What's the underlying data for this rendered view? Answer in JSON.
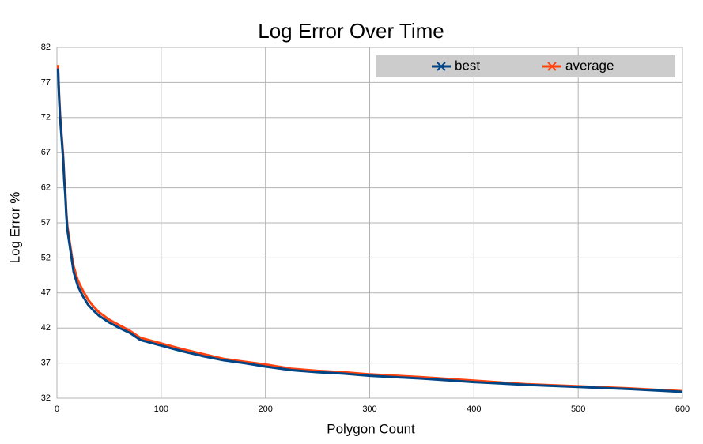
{
  "chart_data": {
    "type": "line",
    "title": "Log Error Over Time",
    "x_label": "Polygon Count",
    "y_label": "Log Error %",
    "x": [
      1,
      2,
      3,
      4,
      5,
      6,
      7,
      8,
      9,
      10,
      12,
      14,
      16,
      18,
      20,
      25,
      30,
      35,
      40,
      50,
      60,
      70,
      80,
      100,
      120,
      140,
      160,
      180,
      200,
      225,
      250,
      275,
      300,
      350,
      400,
      450,
      500,
      550,
      600
    ],
    "series": [
      {
        "name": "best",
        "color": "#004586",
        "values": [
          79,
          75,
          72,
          70,
          68,
          66,
          63,
          61,
          58,
          56,
          54,
          52,
          50,
          49,
          48,
          46.5,
          45.3,
          44.5,
          43.8,
          42.8,
          42,
          41.3,
          40.3,
          39.5,
          38.7,
          38,
          37.4,
          37,
          36.5,
          36,
          35.7,
          35.5,
          35.2,
          34.8,
          34.3,
          33.9,
          33.6,
          33.3,
          32.9
        ]
      },
      {
        "name": "average",
        "color": "#ff420e",
        "values": [
          79.5,
          75.5,
          72.5,
          70.5,
          68.5,
          66.5,
          63.5,
          61.5,
          58.5,
          56.5,
          54.5,
          52.5,
          50.8,
          49.8,
          48.8,
          47.3,
          46,
          45.1,
          44.3,
          43.2,
          42.4,
          41.6,
          40.6,
          39.8,
          39,
          38.3,
          37.6,
          37.2,
          36.8,
          36.2,
          35.9,
          35.7,
          35.4,
          35,
          34.5,
          34,
          33.7,
          33.4,
          33
        ]
      }
    ],
    "xlim": [
      0,
      600
    ],
    "xticks": [
      0,
      100,
      200,
      300,
      400,
      500,
      600
    ],
    "ylim": [
      32,
      82
    ],
    "yticks": [
      32,
      37,
      42,
      47,
      52,
      57,
      62,
      67,
      72,
      77,
      82
    ],
    "grid": true,
    "legend": "top-right"
  }
}
